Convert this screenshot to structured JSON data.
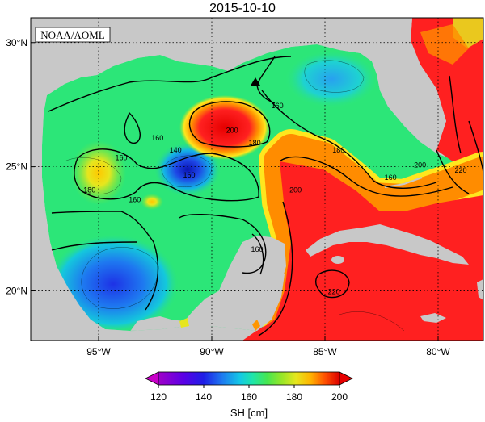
{
  "title": "2015-10-10",
  "credit": "NOAA/AOML",
  "lat_ticks": [
    {
      "label": "30°N",
      "value": 30
    },
    {
      "label": "25°N",
      "value": 25
    },
    {
      "label": "20°N",
      "value": 20
    }
  ],
  "lon_ticks": [
    {
      "label": "95°W",
      "value": -95
    },
    {
      "label": "90°W",
      "value": -90
    },
    {
      "label": "85°W",
      "value": -85
    },
    {
      "label": "80°W",
      "value": -80
    }
  ],
  "map_extent": {
    "lon": [
      -98,
      -78
    ],
    "lat": [
      18,
      31
    ]
  },
  "contour_labels": [
    {
      "text": "160",
      "lon": -94.0,
      "lat": 25.3
    },
    {
      "text": "180",
      "lon": -95.4,
      "lat": 24.0
    },
    {
      "text": "160",
      "lon": -93.4,
      "lat": 23.6
    },
    {
      "text": "160",
      "lon": -92.4,
      "lat": 26.1
    },
    {
      "text": "140",
      "lon": -91.6,
      "lat": 25.6
    },
    {
      "text": "160",
      "lon": -91.0,
      "lat": 24.6
    },
    {
      "text": "160",
      "lon": -87.1,
      "lat": 27.4
    },
    {
      "text": "200",
      "lon": -89.1,
      "lat": 26.4
    },
    {
      "text": "180",
      "lon": -88.1,
      "lat": 25.9
    },
    {
      "text": "180",
      "lon": -84.4,
      "lat": 25.6
    },
    {
      "text": "160",
      "lon": -82.1,
      "lat": 24.5
    },
    {
      "text": "200",
      "lon": -86.3,
      "lat": 24.0
    },
    {
      "text": "160",
      "lon": -88.0,
      "lat": 21.6
    },
    {
      "text": "220",
      "lon": -84.6,
      "lat": 19.9
    },
    {
      "text": "200",
      "lon": -80.8,
      "lat": 25.0
    },
    {
      "text": "220",
      "lon": -79.0,
      "lat": 24.8
    }
  ],
  "colorbar": {
    "label": "SH [cm]",
    "min": 120,
    "max": 200,
    "ticks": [
      {
        "label": "120",
        "value": 120
      },
      {
        "label": "140",
        "value": 140
      },
      {
        "label": "160",
        "value": 160
      },
      {
        "label": "180",
        "value": 180
      },
      {
        "label": "200",
        "value": 200
      }
    ],
    "colors": [
      "#a000c8",
      "#5a00e6",
      "#1e1ee6",
      "#1e64f0",
      "#14aaf0",
      "#14dcd2",
      "#1ee6a0",
      "#3ce664",
      "#78e632",
      "#b4e61e",
      "#e6e61e",
      "#ffb400",
      "#ff7800",
      "#ff1e1e",
      "#dc0000"
    ],
    "under_color": "#c800c8",
    "over_color": "#e60000"
  },
  "colors": {
    "land": "#c8c8c8",
    "ocean_base": "#2ce678",
    "loop_current": "#f01e1e",
    "eddy_low": "#1e64f0"
  }
}
